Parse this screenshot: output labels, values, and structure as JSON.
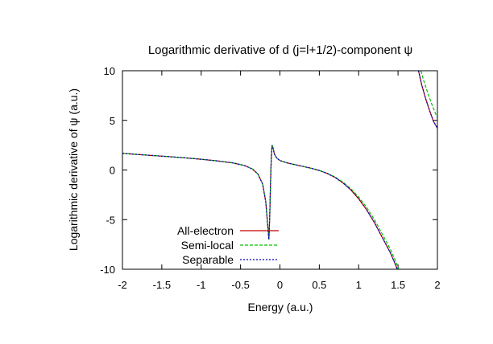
{
  "chart_data": {
    "type": "line",
    "title": "Logarithmic derivative of d (j=l+1/2)-component ψ",
    "xlabel": "Energy (a.u.)",
    "ylabel": "Logarithmic derivative of ψ (a.u.)",
    "xlim": [
      -2,
      2
    ],
    "ylim": [
      -10,
      10
    ],
    "xticks": [
      "-2",
      "-1.5",
      "-1",
      "-0.5",
      "0",
      "0.5",
      "1",
      "1.5",
      "2"
    ],
    "yticks": [
      "10",
      "5",
      "0",
      "-5",
      "-10"
    ],
    "grid": false,
    "legend_position": "bottom-left",
    "series": [
      {
        "name": "All-electron",
        "color": "#c00000",
        "segments": [
          [
            [
              -2.0,
              1.68
            ],
            [
              -1.8,
              1.56
            ],
            [
              -1.6,
              1.45
            ],
            [
              -1.4,
              1.34
            ],
            [
              -1.2,
              1.22
            ],
            [
              -1.0,
              1.08
            ],
            [
              -0.8,
              0.92
            ],
            [
              -0.6,
              0.72
            ],
            [
              -0.45,
              0.45
            ],
            [
              -0.35,
              0.1
            ],
            [
              -0.28,
              -0.4
            ],
            [
              -0.22,
              -1.4
            ],
            [
              -0.18,
              -3.2
            ],
            [
              -0.155,
              -5.6
            ],
            [
              -0.14,
              -7.0
            ],
            [
              -0.13,
              -4.8
            ],
            [
              -0.12,
              -1.5
            ],
            [
              -0.11,
              1.2
            ],
            [
              -0.1,
              2.5
            ],
            [
              -0.09,
              2.3
            ],
            [
              -0.07,
              1.6
            ],
            [
              -0.04,
              1.2
            ],
            [
              0.0,
              0.95
            ],
            [
              0.1,
              0.7
            ],
            [
              0.2,
              0.52
            ],
            [
              0.3,
              0.35
            ],
            [
              0.4,
              0.17
            ],
            [
              0.5,
              -0.05
            ],
            [
              0.6,
              -0.35
            ],
            [
              0.7,
              -0.75
            ],
            [
              0.8,
              -1.3
            ],
            [
              0.9,
              -2.0
            ],
            [
              1.0,
              -2.9
            ],
            [
              1.1,
              -4.0
            ],
            [
              1.2,
              -5.3
            ],
            [
              1.3,
              -6.8
            ],
            [
              1.4,
              -8.3
            ],
            [
              1.45,
              -9.2
            ],
            [
              1.49,
              -10.0
            ]
          ],
          [
            [
              1.76,
              10.0
            ],
            [
              1.8,
              8.6
            ],
            [
              1.85,
              7.2
            ],
            [
              1.9,
              6.0
            ],
            [
              1.95,
              4.9
            ],
            [
              2.0,
              4.2
            ]
          ]
        ]
      },
      {
        "name": "Semi-local",
        "color": "#00c000",
        "segments": [
          [
            [
              -2.0,
              1.68
            ],
            [
              -1.8,
              1.56
            ],
            [
              -1.6,
              1.45
            ],
            [
              -1.4,
              1.34
            ],
            [
              -1.2,
              1.22
            ],
            [
              -1.0,
              1.08
            ],
            [
              -0.8,
              0.92
            ],
            [
              -0.6,
              0.72
            ],
            [
              -0.45,
              0.45
            ],
            [
              -0.35,
              0.1
            ],
            [
              -0.28,
              -0.4
            ],
            [
              -0.22,
              -1.4
            ],
            [
              -0.18,
              -3.2
            ],
            [
              -0.155,
              -5.6
            ],
            [
              -0.14,
              -7.0
            ],
            [
              -0.13,
              -4.8
            ],
            [
              -0.12,
              -1.5
            ],
            [
              -0.11,
              1.2
            ],
            [
              -0.1,
              2.5
            ],
            [
              -0.09,
              2.3
            ],
            [
              -0.07,
              1.6
            ],
            [
              -0.04,
              1.2
            ],
            [
              0.0,
              0.95
            ],
            [
              0.1,
              0.7
            ],
            [
              0.2,
              0.52
            ],
            [
              0.3,
              0.35
            ],
            [
              0.4,
              0.17
            ],
            [
              0.5,
              -0.04
            ],
            [
              0.6,
              -0.32
            ],
            [
              0.7,
              -0.7
            ],
            [
              0.8,
              -1.22
            ],
            [
              0.9,
              -1.88
            ],
            [
              1.0,
              -2.72
            ],
            [
              1.1,
              -3.75
            ],
            [
              1.2,
              -5.0
            ],
            [
              1.3,
              -6.45
            ],
            [
              1.4,
              -7.95
            ],
            [
              1.46,
              -9.0
            ],
            [
              1.51,
              -10.0
            ]
          ],
          [
            [
              1.79,
              10.0
            ],
            [
              1.83,
              8.9
            ],
            [
              1.88,
              7.7
            ],
            [
              1.93,
              6.6
            ],
            [
              1.97,
              5.8
            ],
            [
              2.0,
              5.3
            ]
          ]
        ]
      },
      {
        "name": "Separable",
        "color": "#0000c0",
        "segments": [
          [
            [
              -2.0,
              1.68
            ],
            [
              -1.8,
              1.56
            ],
            [
              -1.6,
              1.45
            ],
            [
              -1.4,
              1.34
            ],
            [
              -1.2,
              1.22
            ],
            [
              -1.0,
              1.08
            ],
            [
              -0.8,
              0.92
            ],
            [
              -0.6,
              0.72
            ],
            [
              -0.45,
              0.45
            ],
            [
              -0.35,
              0.1
            ],
            [
              -0.28,
              -0.4
            ],
            [
              -0.22,
              -1.4
            ],
            [
              -0.18,
              -3.2
            ],
            [
              -0.155,
              -5.6
            ],
            [
              -0.14,
              -7.0
            ],
            [
              -0.13,
              -4.8
            ],
            [
              -0.12,
              -1.5
            ],
            [
              -0.11,
              1.2
            ],
            [
              -0.1,
              2.5
            ],
            [
              -0.09,
              2.3
            ],
            [
              -0.07,
              1.6
            ],
            [
              -0.04,
              1.2
            ],
            [
              0.0,
              0.95
            ],
            [
              0.1,
              0.7
            ],
            [
              0.2,
              0.52
            ],
            [
              0.3,
              0.35
            ],
            [
              0.4,
              0.17
            ],
            [
              0.5,
              -0.05
            ],
            [
              0.6,
              -0.35
            ],
            [
              0.7,
              -0.75
            ],
            [
              0.8,
              -1.3
            ],
            [
              0.9,
              -2.0
            ],
            [
              1.0,
              -2.9
            ],
            [
              1.1,
              -4.0
            ],
            [
              1.2,
              -5.3
            ],
            [
              1.3,
              -6.8
            ],
            [
              1.4,
              -8.3
            ],
            [
              1.45,
              -9.2
            ],
            [
              1.49,
              -10.0
            ]
          ],
          [
            [
              1.76,
              10.0
            ],
            [
              1.8,
              8.6
            ],
            [
              1.85,
              7.2
            ],
            [
              1.9,
              6.0
            ],
            [
              1.95,
              4.9
            ],
            [
              2.0,
              4.2
            ]
          ]
        ]
      }
    ]
  }
}
